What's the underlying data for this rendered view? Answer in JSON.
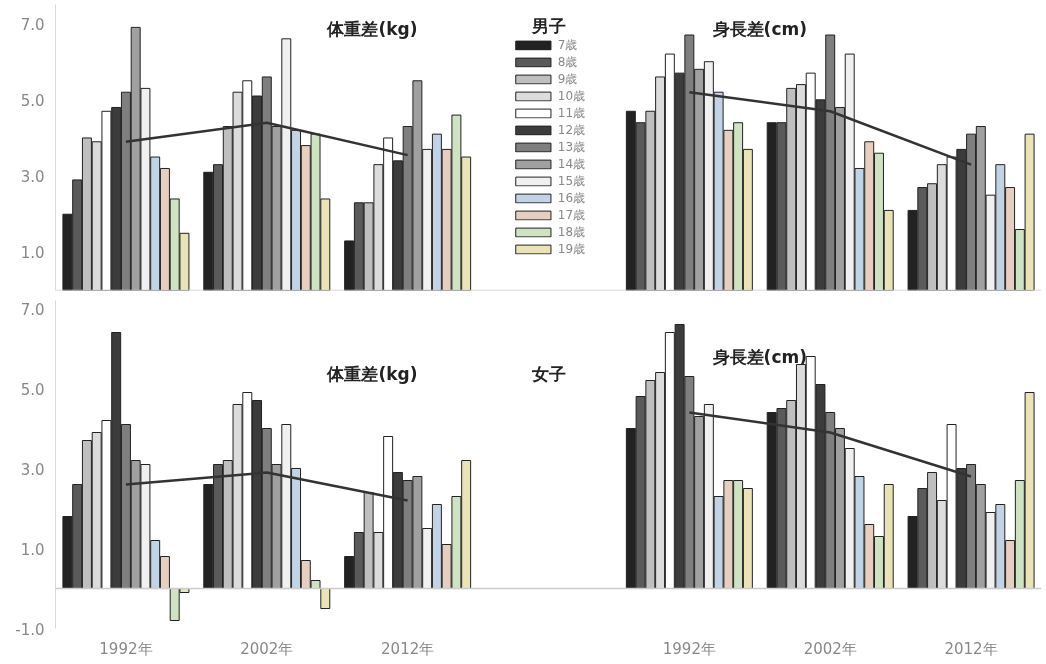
{
  "chart_data": [
    {
      "type": "bar",
      "title": "男子",
      "annotations": [
        "体重差(kg)",
        "身長差(cm)"
      ],
      "categories": [
        null,
        null,
        null,
        null,
        null,
        null,
        null
      ],
      "ylim": [
        0,
        7.5
      ],
      "yticks": [
        {
          "value": 1,
          "label": "1.0"
        },
        {
          "value": 3,
          "label": "3.0"
        },
        {
          "value": 5,
          "label": "5.0"
        },
        {
          "value": 7,
          "label": "7.0"
        }
      ],
      "tick_labels": "y",
      "legend": "center",
      "series": [
        {
          "name": "7歳",
          "color": "#222222",
          "values": [
            2.0,
            3.1,
            1.3,
            null,
            4.7,
            4.4,
            2.1
          ]
        },
        {
          "name": "8歳",
          "color": "#5a5a5a",
          "values": [
            2.9,
            3.3,
            2.3,
            null,
            4.4,
            4.4,
            2.7
          ]
        },
        {
          "name": "9歳",
          "color": "#bfbfbf",
          "values": [
            4.0,
            4.3,
            2.3,
            null,
            4.7,
            5.3,
            2.8
          ]
        },
        {
          "name": "10歳",
          "color": "#dcdcdc",
          "values": [
            3.9,
            5.2,
            3.3,
            null,
            5.6,
            5.4,
            3.3
          ]
        },
        {
          "name": "11歳",
          "color": "#ffffff",
          "values": [
            4.7,
            5.5,
            4.0,
            null,
            6.2,
            5.7,
            3.5
          ]
        },
        {
          "name": "12歳",
          "color": "#3c3c3c",
          "values": [
            4.8,
            5.1,
            3.4,
            null,
            5.7,
            5.0,
            3.7
          ]
        },
        {
          "name": "13歳",
          "color": "#7f7f7f",
          "values": [
            5.2,
            5.6,
            4.3,
            null,
            6.7,
            6.7,
            4.1
          ]
        },
        {
          "name": "14歳",
          "color": "#a0a0a0",
          "values": [
            6.9,
            4.3,
            5.5,
            null,
            5.8,
            4.8,
            4.3
          ]
        },
        {
          "name": "15歳",
          "color": "#f0f0f0",
          "values": [
            5.3,
            6.6,
            3.7,
            null,
            6.0,
            6.2,
            2.5
          ]
        },
        {
          "name": "16歳",
          "color": "#c3d3e6",
          "values": [
            3.5,
            4.2,
            4.1,
            null,
            5.2,
            3.2,
            3.3
          ]
        },
        {
          "name": "17歳",
          "color": "#e6cfc0",
          "values": [
            3.2,
            3.8,
            3.7,
            null,
            4.2,
            3.9,
            2.7
          ]
        },
        {
          "name": "18歳",
          "color": "#cfe3c3",
          "values": [
            2.4,
            4.1,
            4.6,
            null,
            4.4,
            3.6,
            1.6
          ]
        },
        {
          "name": "19歳",
          "color": "#ebe3b8",
          "values": [
            1.5,
            2.4,
            3.5,
            null,
            3.7,
            2.1,
            4.1
          ]
        },
        {
          "type": "line",
          "color": "#333333",
          "values": [
            3.9,
            4.4,
            3.55,
            null,
            5.2,
            4.7,
            3.3
          ]
        }
      ]
    },
    {
      "type": "bar",
      "title": "女子",
      "annotations": [
        "体重差(kg)",
        "身長差(cm)"
      ],
      "categories": [
        "1992年",
        "2002年",
        "2012年",
        null,
        "1992年",
        "2002年",
        "2012年"
      ],
      "ylim": [
        -1,
        7.2
      ],
      "yticks": [
        {
          "value": -1,
          "label": "-1.0"
        },
        {
          "value": 1,
          "label": "1.0"
        },
        {
          "value": 3,
          "label": "3.0"
        },
        {
          "value": 5,
          "label": "5.0"
        },
        {
          "value": 7,
          "label": "7.0"
        }
      ],
      "series": [
        {
          "color": "#222222",
          "values": [
            1.8,
            2.6,
            0.8,
            null,
            4.0,
            4.4,
            1.8
          ]
        },
        {
          "color": "#5a5a5a",
          "values": [
            2.6,
            3.1,
            1.4,
            null,
            4.8,
            4.5,
            2.5
          ]
        },
        {
          "color": "#bfbfbf",
          "values": [
            3.7,
            3.2,
            2.4,
            null,
            5.2,
            4.7,
            2.9
          ]
        },
        {
          "color": "#dcdcdc",
          "values": [
            3.9,
            4.6,
            1.4,
            null,
            5.4,
            5.6,
            2.2
          ]
        },
        {
          "color": "#ffffff",
          "values": [
            4.2,
            4.9,
            3.8,
            null,
            6.4,
            5.8,
            4.1
          ]
        },
        {
          "color": "#3c3c3c",
          "values": [
            6.4,
            4.7,
            2.9,
            null,
            6.6,
            5.1,
            3.0
          ]
        },
        {
          "color": "#7f7f7f",
          "values": [
            4.1,
            4.0,
            2.7,
            null,
            5.3,
            4.4,
            3.1
          ]
        },
        {
          "color": "#a0a0a0",
          "values": [
            3.2,
            3.1,
            2.8,
            null,
            4.3,
            4.0,
            2.6
          ]
        },
        {
          "color": "#f0f0f0",
          "values": [
            3.1,
            4.1,
            1.5,
            null,
            4.6,
            3.5,
            1.9
          ]
        },
        {
          "color": "#c3d3e6",
          "values": [
            1.2,
            3.0,
            2.1,
            null,
            2.3,
            2.8,
            2.1
          ]
        },
        {
          "color": "#e6cfc0",
          "values": [
            0.8,
            0.7,
            1.1,
            null,
            2.7,
            1.6,
            1.2
          ]
        },
        {
          "color": "#cfe3c3",
          "values": [
            -0.8,
            0.2,
            2.3,
            null,
            2.7,
            1.3,
            2.7
          ]
        },
        {
          "color": "#ebe3b8",
          "values": [
            -0.1,
            -0.5,
            3.2,
            null,
            2.5,
            2.6,
            4.9
          ]
        },
        {
          "type": "line",
          "color": "#333333",
          "values": [
            2.6,
            2.9,
            2.2,
            null,
            4.4,
            3.9,
            2.8
          ]
        }
      ]
    }
  ]
}
